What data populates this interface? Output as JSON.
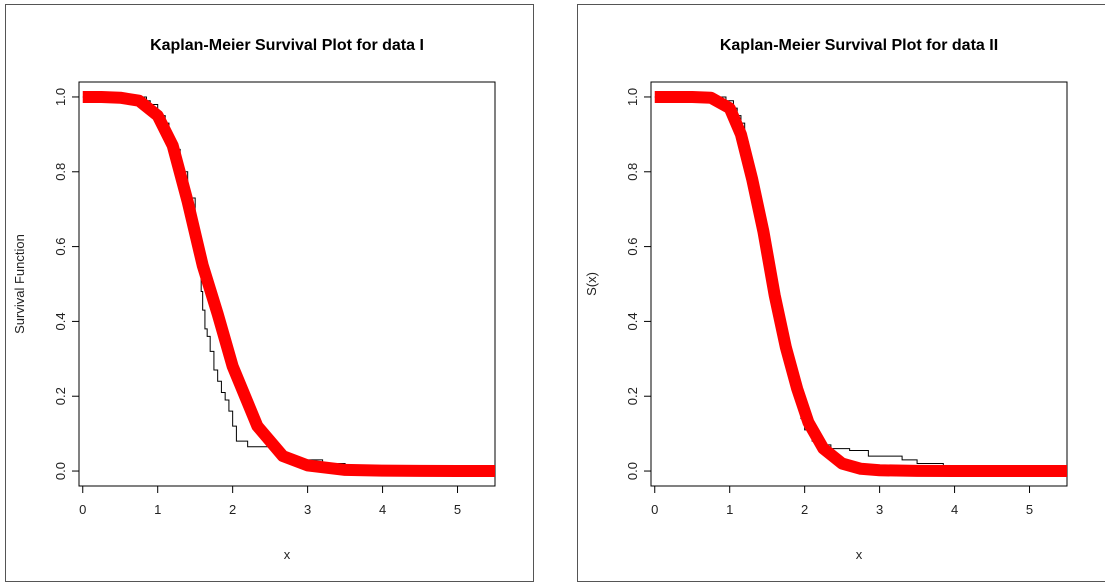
{
  "chart_data": [
    {
      "type": "line",
      "title": "Kaplan-Meier Survival Plot for data I",
      "xlabel": "x",
      "ylabel": "Survival Function",
      "xlim": [
        -0.05,
        5.5
      ],
      "ylim": [
        -0.04,
        1.04
      ],
      "xticks": [
        "0",
        "1",
        "2",
        "3",
        "4",
        "5"
      ],
      "yticks": [
        "0.0",
        "0.2",
        "0.4",
        "0.6",
        "0.8",
        "1.0"
      ],
      "grid": false,
      "colors": {
        "km": "#000000",
        "fit": "#ff0000"
      },
      "series": [
        {
          "kind": "step",
          "x": [
            0,
            0.85,
            0.9,
            1.0,
            1.05,
            1.1,
            1.15,
            1.2,
            1.3,
            1.4,
            1.5,
            1.52,
            1.55,
            1.58,
            1.6,
            1.63,
            1.66,
            1.7,
            1.75,
            1.8,
            1.85,
            1.9,
            1.95,
            2.0,
            2.05,
            2.2,
            2.5,
            2.65,
            2.8,
            3.2,
            3.5,
            3.9
          ],
          "y": [
            1.0,
            0.99,
            0.98,
            0.96,
            0.95,
            0.93,
            0.9,
            0.86,
            0.8,
            0.73,
            0.66,
            0.59,
            0.54,
            0.48,
            0.43,
            0.38,
            0.36,
            0.32,
            0.27,
            0.24,
            0.21,
            0.19,
            0.16,
            0.12,
            0.08,
            0.065,
            0.06,
            0.04,
            0.03,
            0.02,
            0.015,
            0.0
          ]
        },
        {
          "kind": "line",
          "x": [
            0,
            0.25,
            0.5,
            0.75,
            1.0,
            1.2,
            1.4,
            1.6,
            1.8,
            2.0,
            2.33,
            2.67,
            3.0,
            3.5,
            4.0,
            4.5,
            5.0,
            5.5
          ],
          "y": [
            1.0,
            1.0,
            0.998,
            0.99,
            0.95,
            0.87,
            0.72,
            0.55,
            0.42,
            0.28,
            0.12,
            0.04,
            0.015,
            0.003,
            0.001,
            0.0005,
            0.0001,
            0.0
          ]
        }
      ]
    },
    {
      "type": "line",
      "title": "Kaplan-Meier Survival Plot for data II",
      "xlabel": "x",
      "ylabel": "S(x)",
      "xlim": [
        -0.05,
        5.5
      ],
      "ylim": [
        -0.04,
        1.04
      ],
      "xticks": [
        "0",
        "1",
        "2",
        "3",
        "4",
        "5"
      ],
      "yticks": [
        "0.0",
        "0.2",
        "0.4",
        "0.6",
        "0.8",
        "1.0"
      ],
      "grid": false,
      "colors": {
        "km": "#000000",
        "fit": "#ff0000"
      },
      "series": [
        {
          "kind": "step",
          "x": [
            0,
            0.95,
            1.05,
            1.1,
            1.15,
            1.2,
            1.25,
            1.3,
            1.35,
            1.4,
            1.45,
            1.5,
            1.55,
            1.6,
            1.65,
            1.7,
            1.75,
            1.8,
            1.85,
            1.9,
            1.95,
            2.0,
            2.1,
            2.2,
            2.35,
            2.6,
            2.85,
            3.3,
            3.5,
            3.85
          ],
          "y": [
            1.0,
            0.99,
            0.97,
            0.95,
            0.93,
            0.88,
            0.83,
            0.77,
            0.71,
            0.65,
            0.59,
            0.52,
            0.46,
            0.42,
            0.37,
            0.33,
            0.3,
            0.26,
            0.22,
            0.18,
            0.14,
            0.11,
            0.08,
            0.07,
            0.06,
            0.055,
            0.04,
            0.03,
            0.02,
            0.0
          ]
        },
        {
          "kind": "line",
          "x": [
            0,
            0.25,
            0.5,
            0.75,
            1.0,
            1.15,
            1.3,
            1.45,
            1.6,
            1.75,
            1.9,
            2.05,
            2.25,
            2.5,
            2.75,
            3.0,
            3.5,
            4.0,
            4.5,
            5.0,
            5.5
          ],
          "y": [
            1.0,
            1.0,
            1.0,
            0.998,
            0.97,
            0.9,
            0.78,
            0.64,
            0.47,
            0.33,
            0.22,
            0.13,
            0.06,
            0.02,
            0.006,
            0.002,
            0.0005,
            0.0001,
            0.0,
            0.0,
            0.0
          ]
        }
      ]
    }
  ]
}
